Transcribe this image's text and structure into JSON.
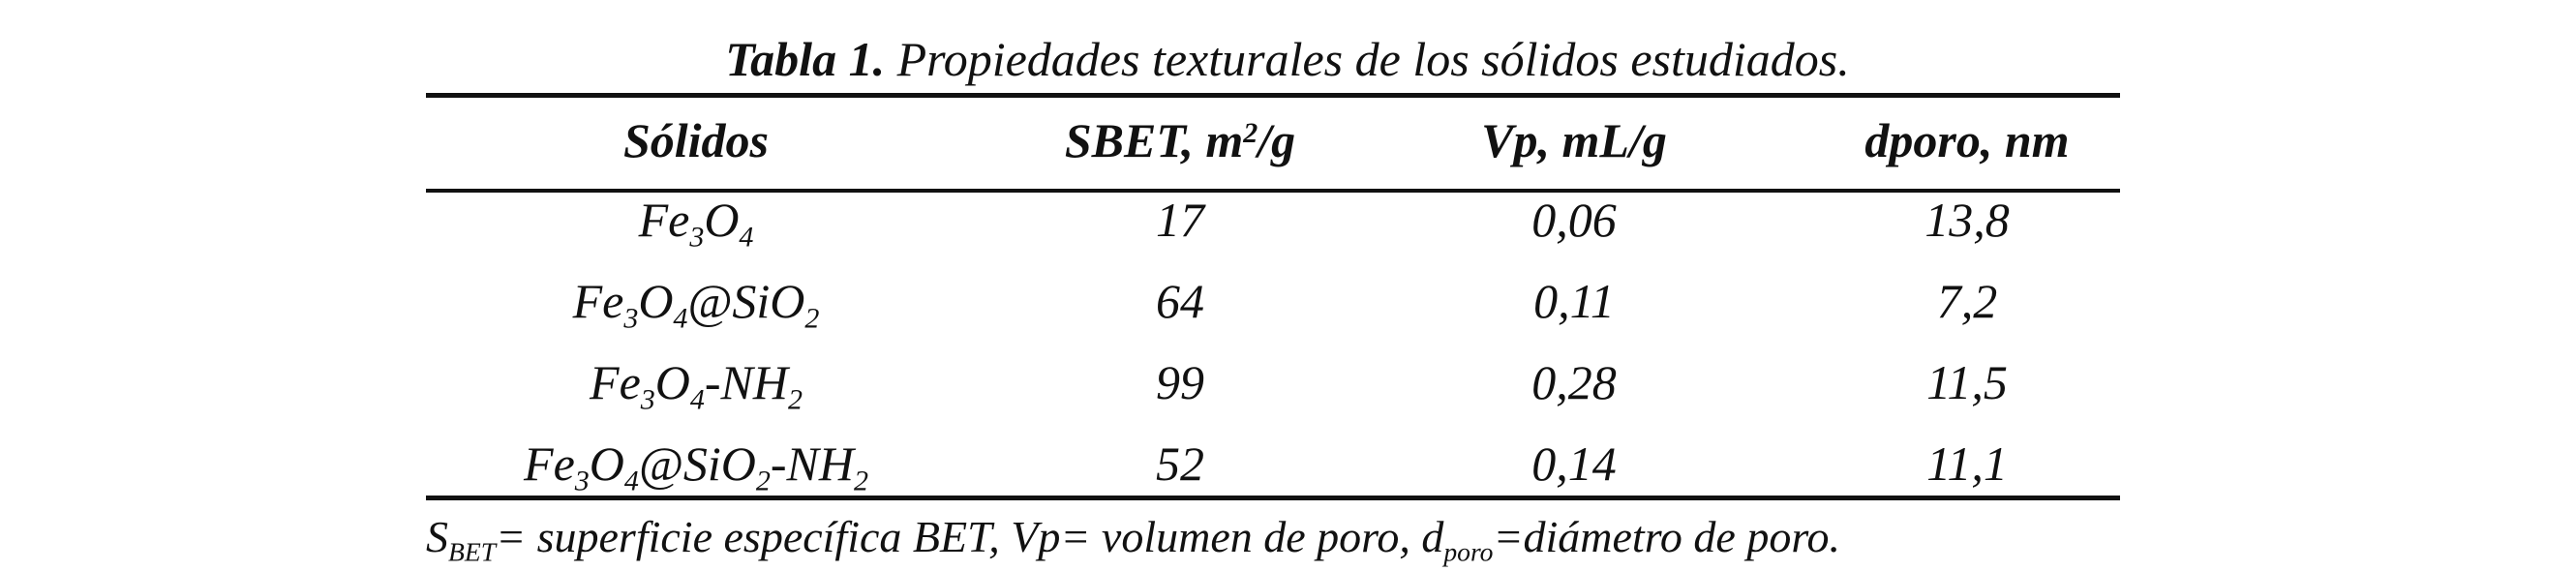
{
  "caption": {
    "label": "Tabla 1.",
    "text": "Propiedades texturales de los sólidos estudiados."
  },
  "table": {
    "header": [
      [
        "Sólidos"
      ],
      [
        "SBET, m",
        {
          "sup": "2"
        },
        "/g"
      ],
      [
        "Vp, mL/g"
      ],
      [
        "dporo, nm"
      ]
    ],
    "rows": [
      [
        [
          "Fe",
          {
            "sub": "3"
          },
          "O",
          {
            "sub": "4"
          }
        ],
        [
          "17"
        ],
        [
          "0,06"
        ],
        [
          "13,8"
        ]
      ],
      [
        [
          "Fe",
          {
            "sub": "3"
          },
          "O",
          {
            "sub": "4"
          },
          "@SiO",
          {
            "sub": "2"
          }
        ],
        [
          "64"
        ],
        [
          "0,11"
        ],
        [
          "7,2"
        ]
      ],
      [
        [
          "Fe",
          {
            "sub": "3"
          },
          "O",
          {
            "sub": "4"
          },
          "-NH",
          {
            "sub": "2"
          }
        ],
        [
          "99"
        ],
        [
          "0,28"
        ],
        [
          "11,5"
        ]
      ],
      [
        [
          "Fe",
          {
            "sub": "3"
          },
          "O",
          {
            "sub": "4"
          },
          "@SiO",
          {
            "sub": "2"
          },
          "-NH",
          {
            "sub": "2"
          }
        ],
        [
          "52"
        ],
        [
          "0,14"
        ],
        [
          "11,1"
        ]
      ]
    ]
  },
  "footnote": [
    "S",
    {
      "sub": "BET"
    },
    "= superficie específica BET, Vp= volumen de poro, d",
    {
      "sub": "poro"
    },
    "=diámetro de poro."
  ]
}
